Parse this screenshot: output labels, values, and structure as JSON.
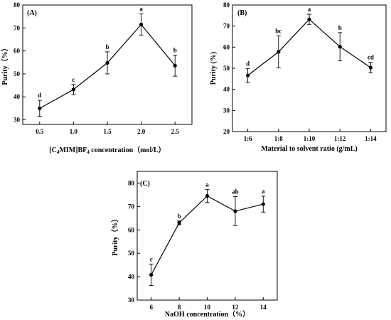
{
  "chart_data": [
    {
      "type": "line",
      "panel_label": "(A)",
      "xlabel": "[C4MIM]BF4 concentration（mol/L）",
      "xlabel_parts": [
        {
          "t": "[C",
          "sub": false
        },
        {
          "t": "4",
          "sub": true
        },
        {
          "t": "MIM]BF",
          "sub": false
        },
        {
          "t": "4",
          "sub": true
        },
        {
          "t": " concentration（mol/L）",
          "sub": false
        }
      ],
      "ylabel": "Purity（%）",
      "x_categorical": false,
      "x": [
        0.5,
        1.0,
        1.5,
        2.0,
        2.5
      ],
      "x_ticks": [
        "0.5",
        "1.0",
        "1.5",
        "2.0",
        "2.5"
      ],
      "xlim": [
        0.25,
        2.75
      ],
      "ylim": [
        28,
        80
      ],
      "y_ticks": [
        30,
        40,
        50,
        60,
        70,
        80
      ],
      "values": [
        35,
        43.2,
        54.8,
        71.5,
        53.6
      ],
      "errors": [
        3.5,
        2.2,
        4.8,
        4.6,
        4.6
      ],
      "labels": [
        "d",
        "c",
        "b",
        "a",
        "b"
      ],
      "grid": false
    },
    {
      "type": "line",
      "panel_label": "(B)",
      "xlabel": "Material to solvent ratio (g/mL)",
      "ylabel": "Purity (%)",
      "x_categorical": true,
      "categories": [
        "1:6",
        "1:8",
        "1:10",
        "1:12",
        "1:14"
      ],
      "ylim": [
        20,
        80
      ],
      "y_ticks": [
        20,
        30,
        40,
        50,
        60,
        70,
        80
      ],
      "values": [
        46.6,
        57.8,
        73.2,
        60.2,
        50.3
      ],
      "errors": [
        3.3,
        7.6,
        2.4,
        6.7,
        2.5
      ],
      "labels": [
        "d",
        "bc",
        "a",
        "b",
        "cd"
      ],
      "grid": false
    },
    {
      "type": "line",
      "panel_label": "(C)",
      "xlabel": "NaOH concentration（%）",
      "ylabel": "Purity（%）",
      "x_categorical": false,
      "x": [
        6,
        8,
        10,
        12,
        14
      ],
      "x_ticks": [
        "6",
        "8",
        "10",
        "12",
        "14"
      ],
      "xlim": [
        5,
        15
      ],
      "ylim": [
        30,
        85
      ],
      "y_ticks": [
        30,
        40,
        50,
        60,
        70,
        80
      ],
      "values": [
        40.8,
        63,
        74.5,
        68,
        71
      ],
      "errors": [
        4.6,
        0.8,
        2.8,
        6.2,
        3.4
      ],
      "labels": [
        "c",
        "b",
        "a",
        "ab",
        "a"
      ],
      "grid": false
    }
  ]
}
